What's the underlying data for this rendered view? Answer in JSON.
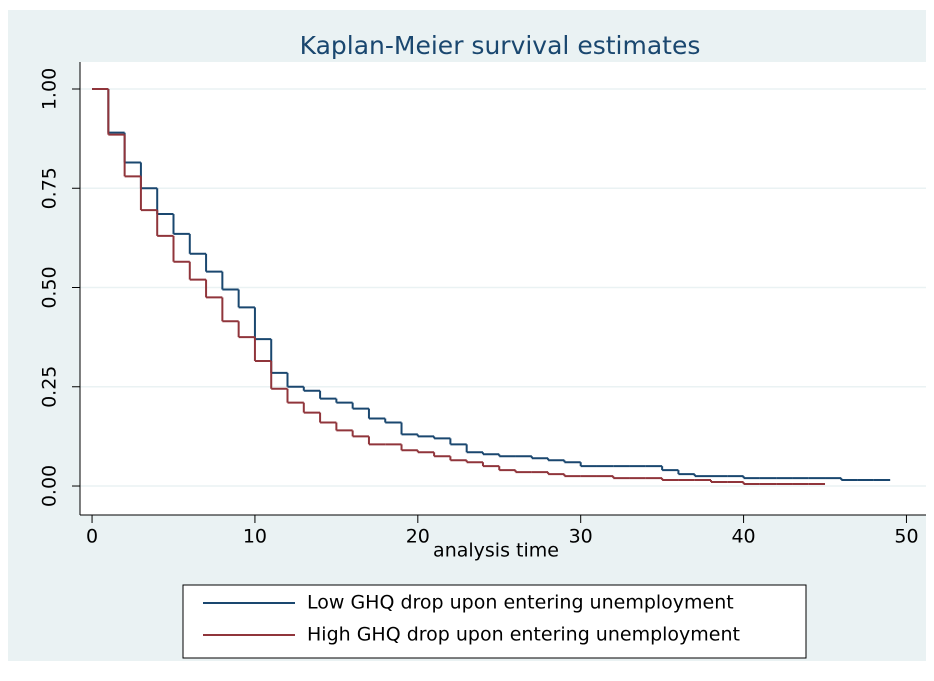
{
  "chart_data": {
    "type": "step",
    "title": "Kaplan-Meier survival estimates",
    "x_label": "analysis time",
    "x": [
      0,
      1,
      2,
      3,
      4,
      5,
      6,
      7,
      8,
      9,
      10,
      11,
      12,
      13,
      14,
      15,
      16,
      17,
      18,
      19,
      20,
      21,
      22,
      23,
      24,
      25,
      26,
      27,
      28,
      29,
      30,
      31,
      32,
      33,
      34,
      35,
      36,
      37,
      38,
      39,
      40,
      41,
      42,
      43,
      44,
      45,
      46,
      47,
      48,
      49
    ],
    "series": [
      {
        "name": "Low GHQ drop upon entering unemployment",
        "color": "#1a476f",
        "values": [
          1,
          0.89,
          0.815,
          0.75,
          0.685,
          0.635,
          0.585,
          0.54,
          0.495,
          0.45,
          0.37,
          0.285,
          0.25,
          0.24,
          0.22,
          0.21,
          0.195,
          0.17,
          0.16,
          0.13,
          0.125,
          0.12,
          0.105,
          0.085,
          0.08,
          0.075,
          0.075,
          0.07,
          0.065,
          0.06,
          0.05,
          0.05,
          0.05,
          0.05,
          0.05,
          0.04,
          0.03,
          0.025,
          0.025,
          0.025,
          0.02,
          0.02,
          0.02,
          0.02,
          0.02,
          0.02,
          0.015,
          0.015,
          0.015,
          0.015
        ]
      },
      {
        "name": "High GHQ drop upon entering unemployment",
        "color": "#90353b",
        "values": [
          1,
          0.885,
          0.78,
          0.695,
          0.63,
          0.565,
          0.52,
          0.475,
          0.415,
          0.375,
          0.315,
          0.245,
          0.21,
          0.185,
          0.16,
          0.14,
          0.125,
          0.105,
          0.105,
          0.09,
          0.085,
          0.075,
          0.065,
          0.06,
          0.05,
          0.04,
          0.035,
          0.035,
          0.03,
          0.025,
          0.025,
          0.025,
          0.02,
          0.02,
          0.02,
          0.015,
          0.015,
          0.015,
          0.01,
          0.01,
          0.005,
          0.005,
          0.005,
          0.005,
          0.005,
          0.005,
          null,
          null,
          null,
          null
        ]
      }
    ],
    "xlim": [
      -0.74,
      51.2
    ],
    "ylim": [
      -0.073,
      1.068
    ],
    "xticks": [
      0,
      10,
      20,
      30,
      40,
      50
    ],
    "yticks": [
      {
        "value": 0,
        "label": "0.00"
      },
      {
        "value": 0.25,
        "label": "0.25"
      },
      {
        "value": 0.5,
        "label": "0.50"
      },
      {
        "value": 0.75,
        "label": "0.75"
      },
      {
        "value": 1,
        "label": "1.00"
      }
    ],
    "grid": true
  }
}
